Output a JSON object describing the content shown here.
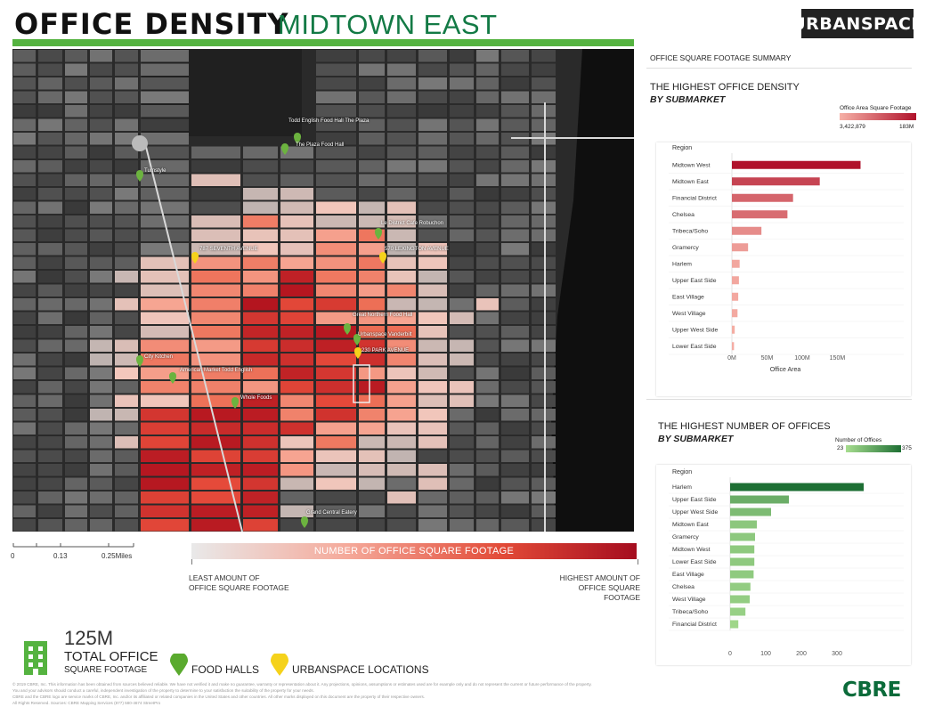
{
  "header": {
    "title": "OFFICE DENSITY",
    "subtitle": "MIDTOWN EAST",
    "logo": "URBANSPACE"
  },
  "map": {
    "scale_ticks": [
      "0",
      "0.13",
      "0.25Miles"
    ],
    "labels": [
      {
        "text": "Todd English Food Hall The Plaza",
        "pin": "green"
      },
      {
        "text": "The Plaza Food Hall",
        "pin": "green"
      },
      {
        "text": "Turnstyle",
        "pin": "green"
      },
      {
        "text": "Le District Cafe Robuchon",
        "pin": "green"
      },
      {
        "text": "570 LEXINGTON AVENUE",
        "pin": "yellow"
      },
      {
        "text": "787 SEVENTH AVENUE",
        "pin": "yellow"
      },
      {
        "text": "Great Northern Food Hall",
        "pin": "green"
      },
      {
        "text": "Urbanspace Vanderbilt",
        "pin": "green"
      },
      {
        "text": "230 PARK AVENUE",
        "pin": "yellow"
      },
      {
        "text": "City Kitchen",
        "pin": "green"
      },
      {
        "text": "American Market Todd English",
        "pin": "green"
      },
      {
        "text": "Whole Foods",
        "pin": "green"
      },
      {
        "text": "Grand Central Eatery",
        "pin": "green"
      }
    ]
  },
  "legend": {
    "bar_label": "NUMBER OF OFFICE SQUARE FOOTAGE",
    "low": [
      "LEAST AMOUNT OF",
      "OFFICE SQUARE FOOTAGE"
    ],
    "high": [
      "HIGHEST AMOUNT OF",
      "OFFICE SQUARE FOOTAGE"
    ]
  },
  "summary": {
    "value": "125M",
    "line1": "TOTAL OFFICE",
    "line2": "SQUARE FOOTAGE",
    "food_halls": "FOOD HALLS",
    "urbanspace": "URBANSPACE LOCATIONS"
  },
  "right": {
    "summary_title": "OFFICE SQUARE FOOTAGE SUMMARY"
  },
  "chart_data": [
    {
      "type": "bar",
      "title": "THE HIGHEST OFFICE DENSITY",
      "subtitle": "BY SUBMARKET",
      "xlabel": "Office Area",
      "ylabel": "Region",
      "legend_title": "Office Area Square Footage",
      "legend_min": "3,422,879",
      "legend_max": "183M",
      "xticks": [
        "0M",
        "50M",
        "100M",
        "150M"
      ],
      "xlim": [
        0,
        190
      ],
      "categories": [
        "Midtown West",
        "Midtown East",
        "Financial District",
        "Chelsea",
        "Tribeca/Soho",
        "Gramercy",
        "Harlem",
        "Upper East Side",
        "East Village",
        "West Village",
        "Upper West Side",
        "Lower East Side"
      ],
      "values": [
        183,
        125,
        87,
        79,
        42,
        23,
        11,
        10,
        9,
        8,
        4,
        3
      ],
      "color_low": "#f6b0a6",
      "color_high": "#b0122b"
    },
    {
      "type": "bar",
      "title": "THE HIGHEST NUMBER OF OFFICES",
      "subtitle": "BY SUBMARKET",
      "ylabel": "Region",
      "legend_title": "Number of Offices",
      "legend_min": "23",
      "legend_max": "375",
      "xticks": [
        "0",
        "100",
        "200",
        "300"
      ],
      "xlim": [
        0,
        400
      ],
      "categories": [
        "Harlem",
        "Upper East Side",
        "Upper West Side",
        "Midtown East",
        "Gramercy",
        "Midtown West",
        "Lower East Side",
        "East Village",
        "Chelsea",
        "West Village",
        "Tribeca/Soho",
        "Financial District"
      ],
      "values": [
        375,
        165,
        115,
        75,
        70,
        68,
        68,
        66,
        57,
        55,
        43,
        23
      ],
      "color_low": "#a7dd8f",
      "color_high": "#1e6f34"
    }
  ],
  "footer": {
    "lines": [
      "© 2019 CBRE, Inc. This information has been obtained from sources believed reliable. We have not verified it and make no guarantee, warranty or representation about it. Any projections, opinions, assumptions or estimates used are for example only and do not represent the current or future performance of the property.",
      "You and your advisors should conduct a careful, independent investigation of the property to determine to your satisfaction the suitability of the property for your needs.",
      "CBRE and the CBRE logo are service marks of CBRE, Inc. and/or its affiliated or related companies in the United States and other countries. All other marks displayed on this document are the property of their respective owners.",
      "All Rights Reserved. Sources: CBRE Mapping Services (877) 580-4674 StreetPro"
    ],
    "brand": "CBRE"
  }
}
